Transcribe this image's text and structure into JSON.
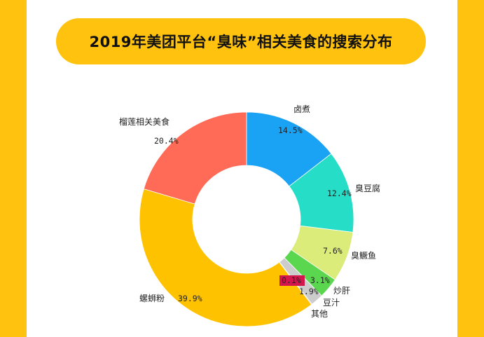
{
  "title": "2019年美团平台“臭味”相关美食的搜索分布",
  "colors": {
    "background": "#FFC20E",
    "card": "#FFFFFF",
    "title_pill": "#FFC20E"
  },
  "chart_data": {
    "type": "pie",
    "donut": true,
    "title": "2019年美团平台“臭味”相关美食的搜索分布",
    "slices": [
      {
        "label": "卤煮",
        "value": 14.5,
        "display": "14.5%",
        "color": "#1AA3F5"
      },
      {
        "label": "臭豆腐",
        "value": 12.4,
        "display": "12.4%",
        "color": "#26DDC7"
      },
      {
        "label": "臭鳜鱼",
        "value": 7.6,
        "display": "7.6%",
        "color": "#DCEC7A"
      },
      {
        "label": "炒肝",
        "value": 3.1,
        "display": "3.1%",
        "color": "#5BD64F"
      },
      {
        "label": "豆汁",
        "value": 1.9,
        "display": "1.9%",
        "color": "#CCCCCC"
      },
      {
        "label": "其他",
        "value": 0.1,
        "display": "0.1%",
        "color": "#D3164C"
      },
      {
        "label": "螺蛳粉",
        "value": 39.9,
        "display": "39.9%",
        "color": "#FFC200"
      },
      {
        "label": "榴莲相关美食",
        "value": 20.4,
        "display": "20.4%",
        "color": "#FF6B57"
      }
    ]
  }
}
